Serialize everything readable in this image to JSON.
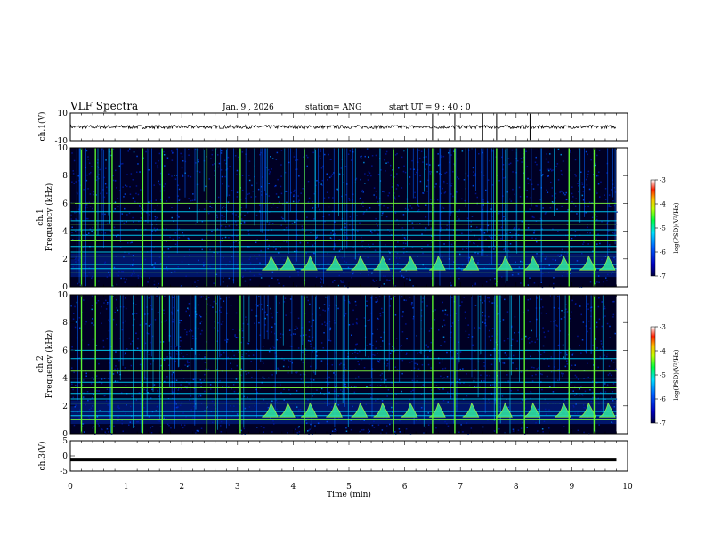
{
  "header": {
    "title": "VLF Spectra",
    "date": "Jan. 9 , 2026",
    "station": "station= ANG",
    "start": "start UT =  9 : 40 : 0"
  },
  "chart_data": [
    {
      "type": "line",
      "name": "ch1-waveform",
      "ylabel": "ch.1(V)",
      "ylim": [
        -10,
        10
      ],
      "y_ticks": [
        "10",
        "-10"
      ],
      "x_range_min": [
        0,
        9.8
      ],
      "baseline": 0,
      "spikes_min": [
        6.5,
        6.9,
        7.4,
        7.65,
        8.25
      ]
    },
    {
      "type": "heatmap",
      "name": "ch1-spectrogram",
      "ylabel": "ch.1\nFrequency (kHz)",
      "ylim": [
        0,
        10
      ],
      "y_ticks": [
        "0",
        "2",
        "4",
        "6",
        "8",
        "10"
      ],
      "x_range_min": [
        0,
        9.8
      ],
      "colorbar": {
        "label": "log(PSD)(V²/Hz)",
        "range": [
          -7,
          -3
        ],
        "ticks": [
          "-3",
          "-4",
          "-5",
          "-6",
          "-7"
        ]
      },
      "horizontal_lines_khz": [
        1.0,
        1.3,
        1.6,
        2.2,
        2.5,
        2.9,
        3.3,
        3.7,
        4.1,
        4.5,
        4.75,
        5.4,
        6.0
      ],
      "chorus_bursts_min": [
        3.6,
        3.9,
        4.3,
        4.75,
        5.2,
        5.6,
        6.1,
        6.6,
        7.2,
        7.8,
        8.3,
        8.85,
        9.3,
        9.65
      ],
      "spikes_min": [
        0.2,
        0.45,
        0.75,
        1.3,
        1.65,
        2.45,
        2.6,
        3.05,
        4.2,
        5.8,
        6.5,
        6.9,
        7.65,
        8.15,
        8.95,
        9.4
      ]
    },
    {
      "type": "heatmap",
      "name": "ch2-spectrogram",
      "ylabel": "ch.2\nFrequency (kHz)",
      "ylim": [
        0,
        10
      ],
      "y_ticks": [
        "0",
        "2",
        "4",
        "6",
        "8",
        "10"
      ],
      "x_range_min": [
        0,
        9.8
      ],
      "colorbar": {
        "label": "log(PSD)(V²/Hz)",
        "range": [
          -7,
          -3
        ],
        "ticks": [
          "-3",
          "-4",
          "-5",
          "-6",
          "-7"
        ]
      },
      "horizontal_lines_khz": [
        1.0,
        1.3,
        1.6,
        2.2,
        2.5,
        2.9,
        3.3,
        3.7,
        4.0,
        4.5,
        5.4,
        6.0
      ],
      "chorus_bursts_min": [
        3.6,
        3.9,
        4.3,
        4.75,
        5.2,
        5.6,
        6.1,
        6.6,
        7.2,
        7.8,
        8.3,
        8.85,
        9.3,
        9.65
      ],
      "spikes_min": [
        0.2,
        0.45,
        0.75,
        1.3,
        1.65,
        2.45,
        2.6,
        3.05,
        4.2,
        5.8,
        6.5,
        6.9,
        7.65,
        8.15,
        8.95,
        9.4
      ]
    },
    {
      "type": "line",
      "name": "ch3-waveform",
      "ylabel": "ch.3(V)",
      "ylim": [
        -5,
        5
      ],
      "y_ticks": [
        "5",
        "0",
        "-5"
      ],
      "x_range_min": [
        0,
        9.8
      ],
      "level": -1.2
    }
  ],
  "x_axis": {
    "label": "Time (min)",
    "range": [
      0,
      10
    ],
    "ticks": [
      "0",
      "1",
      "2",
      "3",
      "4",
      "5",
      "6",
      "7",
      "8",
      "9",
      "10"
    ]
  }
}
